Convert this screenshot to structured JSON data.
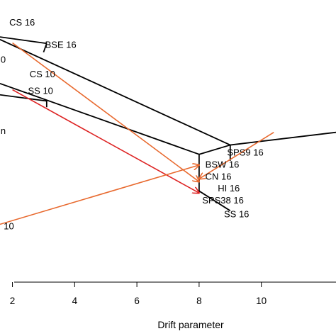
{
  "chart_data": {
    "type": "line",
    "xlabel": "Drift parameter",
    "xlim": [
      1.6,
      12.4
    ],
    "x_ticks": [
      2,
      4,
      6,
      8,
      10
    ],
    "ylim": [
      0,
      1
    ],
    "colors": {
      "tree": "#000000",
      "migration_orange": "#e8692e",
      "migration_red": "#dd2222"
    },
    "tree_segments": [
      {
        "x": [
          1.6,
          9.0
        ],
        "y": [
          0.86,
          0.486
        ]
      },
      {
        "x": [
          9.0,
          12.4
        ],
        "y": [
          0.486,
          0.531
        ]
      },
      {
        "x": [
          1.6,
          8.0
        ],
        "y": [
          0.704,
          0.453
        ]
      },
      {
        "x": [
          8.0,
          9.0
        ],
        "y": [
          0.453,
          0.486
        ]
      },
      {
        "x": [
          8.0,
          8.0
        ],
        "y": [
          0.453,
          0.323
        ]
      },
      {
        "x": [
          8.0,
          9.0
        ],
        "y": [
          0.323,
          0.253
        ]
      },
      {
        "x": [
          1.6,
          3.1
        ],
        "y": [
          0.869,
          0.846
        ]
      },
      {
        "x": [
          3.1,
          3.0
        ],
        "y": [
          0.846,
          0.815
        ]
      },
      {
        "x": [
          1.6,
          3.1
        ],
        "y": [
          0.664,
          0.642
        ]
      },
      {
        "x": [
          3.1,
          3.1
        ],
        "y": [
          0.642,
          0.62
        ]
      },
      {
        "x": [
          9.0,
          9.0
        ],
        "y": [
          0.486,
          0.43
        ]
      }
    ],
    "migration_edges": [
      {
        "color": "orange",
        "from": [
          2.0,
          0.848
        ],
        "to": [
          8.0,
          0.356
        ]
      },
      {
        "color": "red",
        "from": [
          2.0,
          0.682
        ],
        "to": [
          8.0,
          0.316
        ]
      },
      {
        "color": "orange",
        "from": [
          1.6,
          0.205
        ],
        "to": [
          8.0,
          0.415
        ]
      },
      {
        "color": "orange",
        "from": [
          10.4,
          0.531
        ],
        "to": [
          8.0,
          0.366
        ]
      }
    ],
    "labels": [
      {
        "text": "CS 16",
        "x": 1.9,
        "y": 0.91
      },
      {
        "text": "BSE 16",
        "x": 3.05,
        "y": 0.83
      },
      {
        "text": "0",
        "x": 1.62,
        "y": 0.778
      },
      {
        "text": "CS 10",
        "x": 2.55,
        "y": 0.726
      },
      {
        "text": "SS 10",
        "x": 2.5,
        "y": 0.667
      },
      {
        "text": "n",
        "x": 1.62,
        "y": 0.525
      },
      {
        "text": "SPS9 16",
        "x": 8.9,
        "y": 0.449
      },
      {
        "text": "BSW 16",
        "x": 8.2,
        "y": 0.406
      },
      {
        "text": "CN 16",
        "x": 8.2,
        "y": 0.363
      },
      {
        "text": "HI 16",
        "x": 8.6,
        "y": 0.321
      },
      {
        "text": "SPS38 16",
        "x": 8.1,
        "y": 0.279
      },
      {
        "text": "SS 16",
        "x": 8.8,
        "y": 0.23
      },
      {
        "text": "10",
        "x": 1.72,
        "y": 0.187
      }
    ]
  }
}
